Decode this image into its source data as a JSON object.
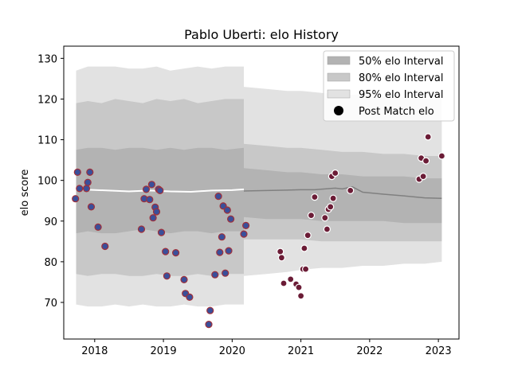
{
  "chart_data": {
    "type": "scatter",
    "title": "Pablo Uberti: elo History",
    "xlabel": "",
    "ylabel": "elo score",
    "xlim": [
      2017.55,
      2023.3
    ],
    "ylim": [
      61,
      133
    ],
    "x_ticks": [
      2018,
      2019,
      2020,
      2021,
      2022,
      2023
    ],
    "y_ticks": [
      70,
      80,
      90,
      100,
      110,
      120,
      130
    ],
    "grid": false,
    "legend_position": "top-right",
    "legend": [
      {
        "label": "50% elo Interval",
        "kind": "band50"
      },
      {
        "label": "80% elo Interval",
        "kind": "band80"
      },
      {
        "label": "95% elo Interval",
        "kind": "band95"
      },
      {
        "label": "Post Match elo",
        "kind": "marker"
      }
    ],
    "colors": {
      "band50": "#b3b3b3",
      "band80": "#c8c8c8",
      "band95": "#e2e2e2",
      "mean_line": "#808080",
      "mean_line_early": "#ffffff",
      "marker_fill_early": "#3a4f9a",
      "marker_edge_early": "#a0303a",
      "marker_fill_late": "#6b1c36",
      "marker_edge_late": "#ffffff"
    },
    "early_bands": {
      "x": [
        2017.73,
        2017.9,
        2018.1,
        2018.3,
        2018.5,
        2018.7,
        2018.9,
        2019.1,
        2019.3,
        2019.5,
        2019.7,
        2019.9,
        2020.17
      ],
      "p95_upper": [
        127,
        128,
        128,
        128,
        127.5,
        127.5,
        128,
        127,
        127.5,
        128,
        127.5,
        128,
        128
      ],
      "p80_upper": [
        119,
        119.5,
        119,
        120,
        119.5,
        119,
        120,
        119.5,
        120,
        119,
        119.5,
        120,
        120
      ],
      "p50_upper": [
        107.5,
        108,
        108,
        107.5,
        108,
        108,
        107.5,
        108,
        107.5,
        108,
        108,
        107.5,
        108
      ],
      "p50_lower": [
        87,
        87.5,
        87,
        87,
        87.5,
        88,
        87.5,
        87,
        87.5,
        87.5,
        87,
        87.5,
        87.5
      ],
      "p80_lower": [
        77,
        76.5,
        77,
        77,
        76.5,
        76.5,
        77,
        76.5,
        76.5,
        77,
        76.5,
        77,
        77
      ],
      "p95_lower": [
        69.5,
        69,
        69,
        69.5,
        69,
        69.5,
        69,
        69,
        69.5,
        69,
        69,
        69.5,
        69.5
      ]
    },
    "early_mean": {
      "x": [
        2017.73,
        2017.9,
        2018.2,
        2018.5,
        2018.8,
        2019.1,
        2019.4,
        2019.7,
        2020.0,
        2020.17
      ],
      "y": [
        97.8,
        97.7,
        97.5,
        97.3,
        97.5,
        97.3,
        97.2,
        97.5,
        97.6,
        97.8
      ]
    },
    "late_bands": {
      "x": [
        2020.17,
        2020.5,
        2020.8,
        2021.0,
        2021.3,
        2021.6,
        2021.9,
        2022.2,
        2022.5,
        2022.8,
        2023.05
      ],
      "p95_upper": [
        123,
        122.5,
        122,
        122,
        121.5,
        121,
        121,
        120.5,
        120.5,
        120,
        120
      ],
      "p80_upper": [
        109,
        108.5,
        108,
        108,
        107.5,
        107,
        107,
        106.5,
        106.5,
        106,
        106
      ],
      "p50_upper": [
        103,
        102.5,
        102,
        102,
        101.5,
        101.5,
        101,
        101,
        101,
        100.5,
        100.5
      ],
      "p50_lower": [
        91,
        90.5,
        90.5,
        90.5,
        90,
        90,
        90,
        90,
        89.5,
        89.5,
        89.5
      ],
      "p80_lower": [
        85.5,
        85.5,
        85.5,
        85.5,
        85,
        85,
        85,
        85,
        85,
        85,
        85
      ],
      "p95_lower": [
        76.5,
        77,
        77.5,
        78,
        78.5,
        78.5,
        79,
        79,
        79.5,
        79.5,
        80
      ]
    },
    "late_mean": {
      "x": [
        2020.17,
        2020.5,
        2020.8,
        2021.0,
        2021.2,
        2021.35,
        2021.5,
        2021.6,
        2021.75,
        2021.9,
        2022.2,
        2022.5,
        2022.8,
        2023.05
      ],
      "y": [
        97.4,
        97.5,
        97.6,
        97.7,
        97.7,
        97.9,
        98.1,
        97.9,
        98.4,
        97.1,
        96.6,
        96.2,
        95.7,
        95.6
      ]
    },
    "series": [
      {
        "group": "early",
        "x": [
          2017.72,
          2017.75,
          2017.78,
          2017.88,
          2017.9,
          2017.93,
          2017.95,
          2018.05,
          2018.15,
          2018.68,
          2018.72,
          2018.75,
          2018.8,
          2018.83,
          2018.85,
          2018.88,
          2018.9,
          2018.93,
          2018.95,
          2018.97,
          2019.03,
          2019.05,
          2019.18,
          2019.3,
          2019.32,
          2019.38,
          2019.66,
          2019.68,
          2019.75,
          2019.8,
          2019.82,
          2019.85,
          2019.87,
          2019.9,
          2019.93,
          2019.95,
          2019.98,
          2020.17,
          2020.2
        ],
        "y": [
          95.5,
          102,
          98,
          98,
          99.5,
          102,
          93.5,
          88.5,
          83.8,
          88,
          95.5,
          97.8,
          95.3,
          99,
          90.8,
          93.4,
          92.3,
          97.8,
          97.5,
          87.2,
          82.5,
          76.5,
          82.2,
          75.6,
          72.2,
          71.3,
          64.6,
          68,
          76.8,
          96.1,
          82.3,
          86.1,
          93.7,
          77.2,
          92.7,
          82.7,
          90.5,
          86.8,
          88.9
        ]
      },
      {
        "group": "late",
        "x": [
          2020.7,
          2020.72,
          2020.75,
          2020.85,
          2020.93,
          2020.97,
          2021.0,
          2021.03,
          2021.05,
          2021.07,
          2021.1,
          2021.15,
          2021.2,
          2021.35,
          2021.38,
          2021.4,
          2021.43,
          2021.45,
          2021.47,
          2021.5,
          2021.72,
          2022.72,
          2022.75,
          2022.78,
          2022.82,
          2022.85,
          2023.05
        ],
        "y": [
          82.5,
          81,
          74.7,
          75.7,
          74.5,
          73.7,
          71.6,
          78.2,
          83.3,
          78.2,
          86.5,
          91.4,
          95.9,
          90.8,
          88,
          92.9,
          93.5,
          101,
          95.6,
          101.8,
          97.5,
          100.3,
          105.5,
          101,
          104.8,
          110.7,
          106
        ]
      }
    ]
  }
}
